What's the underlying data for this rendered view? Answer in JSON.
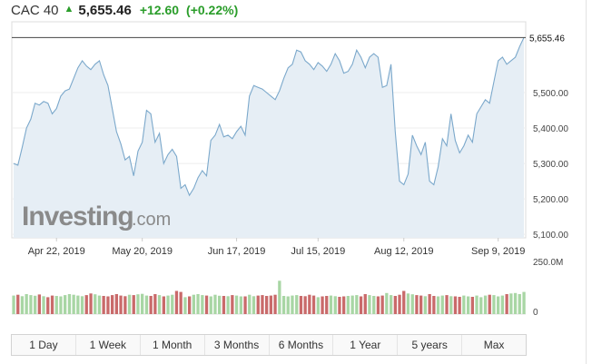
{
  "header": {
    "index_name": "CAC 40",
    "up_icon": "up-arrow-icon",
    "price": "5,655.46",
    "change": "+12.60",
    "change_pct": "(+0.22%)",
    "up_color": "#2a9d2a"
  },
  "chart_data": {
    "type": "area",
    "series": [
      {
        "values": [
          5300,
          5295,
          5345,
          5400,
          5425,
          5470,
          5465,
          5475,
          5470,
          5440,
          5455,
          5490,
          5505,
          5510,
          5540,
          5570,
          5590,
          5575,
          5565,
          5580,
          5590,
          5550,
          5520,
          5455,
          5390,
          5355,
          5310,
          5320,
          5265,
          5335,
          5360,
          5450,
          5440,
          5360,
          5385,
          5300,
          5325,
          5340,
          5320,
          5230,
          5240,
          5210,
          5230,
          5260,
          5280,
          5265,
          5365,
          5380,
          5410,
          5375,
          5380,
          5370,
          5390,
          5405,
          5380,
          5490,
          5520,
          5515,
          5510,
          5500,
          5490,
          5480,
          5505,
          5540,
          5570,
          5580,
          5620,
          5615,
          5590,
          5580,
          5565,
          5585,
          5575,
          5560,
          5580,
          5610,
          5590,
          5555,
          5560,
          5580,
          5620,
          5600,
          5570,
          5600,
          5610,
          5600,
          5515,
          5520,
          5580,
          5390,
          5250,
          5240,
          5270,
          5380,
          5350,
          5325,
          5360,
          5250,
          5240,
          5290,
          5370,
          5350,
          5440,
          5365,
          5330,
          5350,
          5380,
          5360,
          5440,
          5460,
          5480,
          5470,
          5530,
          5590,
          5600,
          5580,
          5590,
          5600,
          5630,
          5655.46
        ]
      }
    ],
    "x_tick_labels": [
      "Apr 22, 2019",
      "May 20, 2019",
      "Jun 17, 2019",
      "Jul 15, 2019",
      "Aug 12, 2019",
      "Sep 9, 2019"
    ],
    "x_tick_index": [
      10,
      30,
      52,
      71,
      91,
      113
    ],
    "y_ticks": [
      5100,
      5200,
      5300,
      5400,
      5500
    ],
    "y_tick_labels": [
      "5,100.00",
      "5,200.00",
      "5,300.00",
      "5,400.00",
      "5,500.00"
    ],
    "ylim": [
      5090,
      5700
    ],
    "last_value_label": "5,655.46",
    "volume": {
      "values": [
        88,
        92,
        85,
        95,
        90,
        87,
        93,
        85,
        80,
        88,
        86,
        84,
        90,
        95,
        92,
        88,
        85,
        90,
        98,
        94,
        88,
        86,
        84,
        90,
        95,
        88,
        85,
        92,
        90,
        94,
        96,
        88,
        86,
        95,
        90,
        84,
        88,
        92,
        110,
        105,
        80,
        84,
        92,
        95,
        90,
        88,
        84,
        92,
        87,
        86,
        85,
        90,
        88,
        84,
        84,
        92,
        85,
        88,
        90,
        86,
        88,
        92,
        158,
        86,
        84,
        88,
        90,
        86,
        85,
        92,
        88,
        80,
        84,
        86,
        88,
        85,
        82,
        84,
        86,
        88,
        90,
        84,
        95,
        90,
        86,
        84,
        88,
        100,
        90,
        86,
        92,
        110,
        98,
        94,
        90,
        88,
        85,
        95,
        86,
        84,
        88,
        90,
        85,
        84,
        82,
        88,
        84,
        82,
        88,
        80,
        88,
        92,
        90,
        84,
        88,
        95,
        98,
        100,
        95,
        105
      ],
      "axis_label": "250.0M",
      "zero_label": "0",
      "up_color": "#a8d6a4",
      "down_color": "#c96a6a"
    },
    "line_color": "#7ba8cb",
    "area_color": "#e6eef5",
    "watermark": "Investing",
    "watermark_suffix": ".com"
  },
  "ranges": [
    "1 Day",
    "1 Week",
    "1 Month",
    "3 Months",
    "6 Months",
    "1 Year",
    "5 years",
    "Max"
  ]
}
